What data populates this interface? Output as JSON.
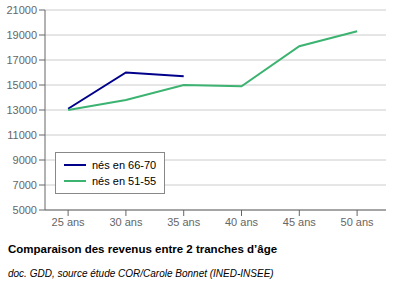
{
  "chart_data": {
    "type": "line",
    "title": "Comparaison des revenus entre 2 tranches d’âge",
    "subtitle": "doc. GDD, source étude COR/Carole Bonnet (INED-INSEE)",
    "x": [
      25,
      30,
      35,
      40,
      45,
      50
    ],
    "series": [
      {
        "name": "nés en 66-70",
        "color": "#00008B",
        "values": [
          13100,
          16000,
          15700,
          null,
          null,
          null
        ]
      },
      {
        "name": "nés en 51-55",
        "color": "#3CB371",
        "values": [
          13000,
          13800,
          15000,
          14900,
          18100,
          19300
        ]
      }
    ],
    "xlim": [
      23,
      52.5
    ],
    "xticks": [
      {
        "value": 25,
        "label": "25 ans"
      },
      {
        "value": 30,
        "label": "30 ans"
      },
      {
        "value": 35,
        "label": "35 ans"
      },
      {
        "value": 40,
        "label": "40 ans"
      },
      {
        "value": 45,
        "label": "45 ans"
      },
      {
        "value": 50,
        "label": "50 ans"
      }
    ],
    "ylim": [
      5000,
      21000
    ],
    "yticks": [
      5000,
      7000,
      9000,
      11000,
      13000,
      15000,
      17000,
      19000,
      21000
    ],
    "grid": "y",
    "legend": "lower left"
  }
}
